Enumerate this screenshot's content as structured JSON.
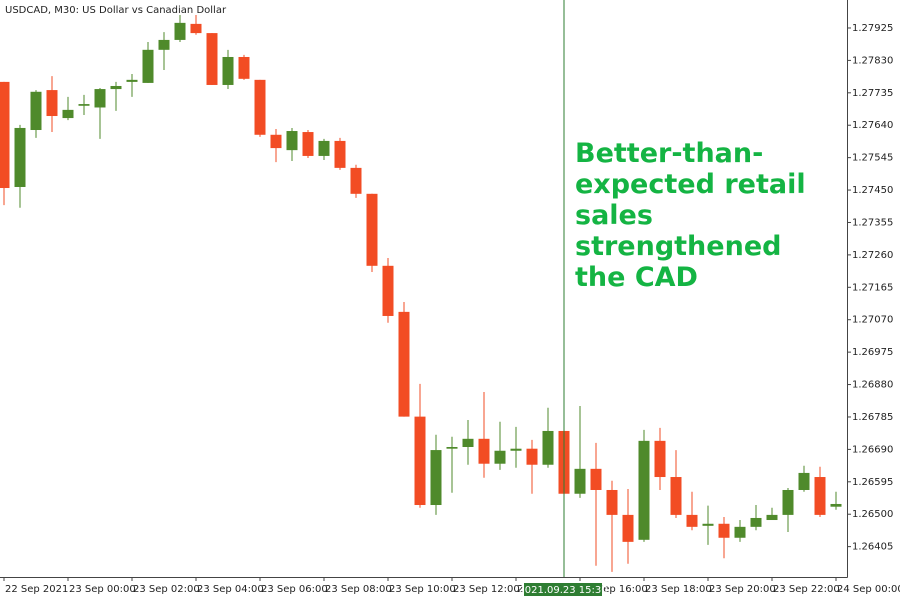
{
  "chart_data": {
    "type": "candlestick",
    "title": "USDCAD, M30:  US Dollar vs Canadian Dollar",
    "categories": [
      "22 Sep 2021",
      null,
      null,
      null,
      "23 Sep 00:00",
      null,
      null,
      null,
      "23 Sep 02:00",
      null,
      null,
      null,
      "23 Sep 04:00",
      null,
      null,
      null,
      "23 Sep 06:00",
      null,
      null,
      null,
      "23 Sep 08:00",
      null,
      null,
      null,
      "23 Sep 10:00",
      null,
      null,
      null,
      "23 Sep 12:00",
      null,
      null,
      null,
      "23 Sep 14:00",
      null,
      null,
      null,
      "23 Sep 16:00",
      null,
      null,
      null,
      "23 Sep 18:00",
      null,
      null,
      null,
      "23 Sep 20:00",
      null,
      null,
      null,
      "23 Sep 22:00",
      null,
      null,
      null,
      "24 Sep 00:00"
    ],
    "open": [
      1.27767,
      1.27459,
      1.27626,
      1.27743,
      1.27661,
      1.27697,
      1.27692,
      1.27746,
      1.27767,
      1.27764,
      1.27861,
      1.2789,
      1.27937,
      1.2791,
      1.27758,
      1.2784,
      1.27773,
      1.27612,
      1.27567,
      1.2762,
      1.2755,
      1.27594,
      1.27515,
      1.27439,
      1.27228,
      1.27093,
      1.26786,
      1.26527,
      1.26692,
      1.26697,
      1.26721,
      1.26648,
      1.26686,
      1.26692,
      1.26645,
      1.26744,
      1.2656,
      1.26633,
      1.26571,
      1.26498,
      1.26425,
      1.26715,
      1.26609,
      1.26498,
      1.26466,
      1.26472,
      1.26431,
      1.26463,
      1.26483,
      1.26498,
      1.26571,
      1.26609,
      1.26522
    ],
    "high": [
      1.27767,
      1.27641,
      1.27743,
      1.27784,
      1.27723,
      1.27729,
      1.27749,
      1.27767,
      1.2779,
      1.27884,
      1.27913,
      1.27963,
      1.27963,
      1.2791,
      1.27861,
      1.27846,
      1.27773,
      1.27629,
      1.27632,
      1.27626,
      1.276,
      1.27603,
      1.27524,
      1.27439,
      1.27251,
      1.27122,
      1.26882,
      1.26733,
      1.26727,
      1.26776,
      1.26858,
      1.26771,
      1.26756,
      1.26718,
      1.26812,
      1.26826,
      1.26817,
      1.26709,
      1.26598,
      1.26574,
      1.26747,
      1.26753,
      1.26688,
      1.26566,
      1.26525,
      1.26492,
      1.26483,
      1.26527,
      1.26519,
      1.26577,
      1.26642,
      1.26639,
      1.26566
    ],
    "low": [
      1.27406,
      1.27398,
      1.27603,
      1.2762,
      1.27655,
      1.2767,
      1.276,
      1.27682,
      1.27723,
      1.27764,
      1.27802,
      1.27884,
      1.27905,
      1.27758,
      1.27746,
      1.27773,
      1.27606,
      1.27532,
      1.27535,
      1.27544,
      1.27538,
      1.27509,
      1.27427,
      1.2721,
      1.27061,
      1.26786,
      1.26519,
      1.26498,
      1.26563,
      1.26645,
      1.26607,
      1.2663,
      1.26636,
      1.2656,
      1.26636,
      1.26513,
      1.26548,
      1.26349,
      1.26331,
      1.26355,
      1.26419,
      1.26571,
      1.26489,
      1.26453,
      1.2641,
      1.26371,
      1.26419,
      1.26453,
      1.26483,
      1.26448,
      1.26566,
      1.26492,
      1.26513
    ],
    "close": [
      1.27456,
      1.27632,
      1.27738,
      1.27667,
      1.27685,
      1.27702,
      1.27746,
      1.27755,
      1.27773,
      1.27861,
      1.2789,
      1.2794,
      1.2791,
      1.27758,
      1.2784,
      1.27776,
      1.27612,
      1.27573,
      1.27623,
      1.2755,
      1.27594,
      1.27515,
      1.27439,
      1.27228,
      1.27081,
      1.26786,
      1.26527,
      1.26688,
      1.26697,
      1.26721,
      1.26648,
      1.26686,
      1.26692,
      1.26645,
      1.26744,
      1.2656,
      1.26633,
      1.26571,
      1.26498,
      1.26419,
      1.26715,
      1.26609,
      1.26498,
      1.26463,
      1.26472,
      1.26431,
      1.26463,
      1.26489,
      1.26498,
      1.26571,
      1.26621,
      1.26498,
      1.2653
    ],
    "up_color": "#4f8a2b",
    "down_color": "#f24c24",
    "ylim": [
      1.26316,
      1.28007
    ],
    "yticks": [
      1.27925,
      {
        "value": 1.2783,
        "label": "1.27830"
      },
      1.27735,
      {
        "value": 1.2764,
        "label": "1.27640"
      },
      1.27545,
      {
        "value": 1.2745,
        "label": "1.27450"
      },
      1.27355,
      {
        "value": 1.2726,
        "label": "1.27260"
      },
      1.27165,
      {
        "value": 1.2707,
        "label": "1.27070"
      },
      1.26975,
      {
        "value": 1.2688,
        "label": "1.26880"
      },
      1.26785,
      {
        "value": 1.2669,
        "label": "1.26690"
      },
      1.26595,
      {
        "value": 1.265,
        "label": "1.26500"
      },
      1.26405
    ],
    "crosshair_label": "2021.09.23 15:30",
    "annotation": [
      "Better-than-",
      "expected retail",
      "sales",
      "strengthened",
      "the CAD"
    ]
  }
}
